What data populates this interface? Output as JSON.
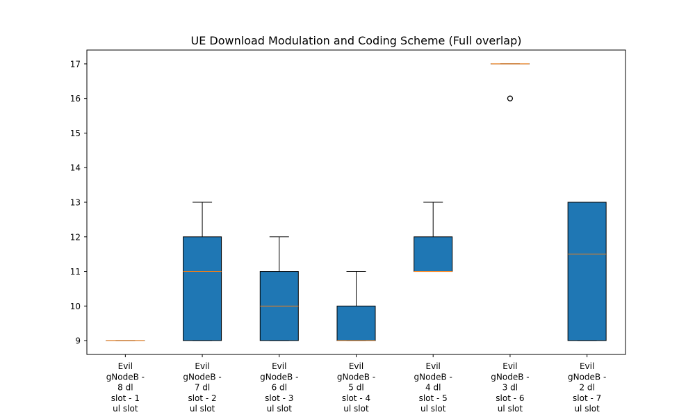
{
  "chart_data": {
    "type": "boxplot",
    "title": "UE Download Modulation and Coding Scheme (Full overlap)",
    "xlabel": "",
    "ylabel": "",
    "ylim": [
      8.6,
      17.4
    ],
    "yticks": [
      9,
      10,
      11,
      12,
      13,
      14,
      15,
      16,
      17
    ],
    "grid": false,
    "box_color": "#1f77b4",
    "median_color": "#ff7f0e",
    "categories": [
      [
        "Evil",
        "gNodeB -",
        "8 dl",
        "slot - 1",
        "ul slot"
      ],
      [
        "Evil",
        "gNodeB -",
        "7 dl",
        "slot - 2",
        "ul slot"
      ],
      [
        "Evil",
        "gNodeB -",
        "6 dl",
        "slot - 3",
        "ul slot"
      ],
      [
        "Evil",
        "gNodeB -",
        "5 dl",
        "slot - 4",
        "ul slot"
      ],
      [
        "Evil",
        "gNodeB -",
        "4 dl",
        "slot - 5",
        "ul slot"
      ],
      [
        "Evil",
        "gNodeB -",
        "3 dl",
        "slot - 6",
        "ul slot"
      ],
      [
        "Evil",
        "gNodeB -",
        "2 dl",
        "slot - 7",
        "ul slot"
      ]
    ],
    "boxes": [
      {
        "whisker_low": 9,
        "q1": 9,
        "median": 9,
        "q3": 9,
        "whisker_high": 9,
        "outliers": []
      },
      {
        "whisker_low": 9,
        "q1": 9,
        "median": 11,
        "q3": 12,
        "whisker_high": 13,
        "outliers": []
      },
      {
        "whisker_low": 9,
        "q1": 9,
        "median": 10,
        "q3": 11,
        "whisker_high": 12,
        "outliers": []
      },
      {
        "whisker_low": 9,
        "q1": 9,
        "median": 9,
        "q3": 10,
        "whisker_high": 11,
        "outliers": []
      },
      {
        "whisker_low": 11,
        "q1": 11,
        "median": 11,
        "q3": 12,
        "whisker_high": 13,
        "outliers": []
      },
      {
        "whisker_low": 17,
        "q1": 17,
        "median": 17,
        "q3": 17,
        "whisker_high": 17,
        "outliers": [
          16
        ]
      },
      {
        "whisker_low": 9,
        "q1": 9,
        "median": 11.5,
        "q3": 13,
        "whisker_high": 13,
        "outliers": []
      }
    ]
  }
}
